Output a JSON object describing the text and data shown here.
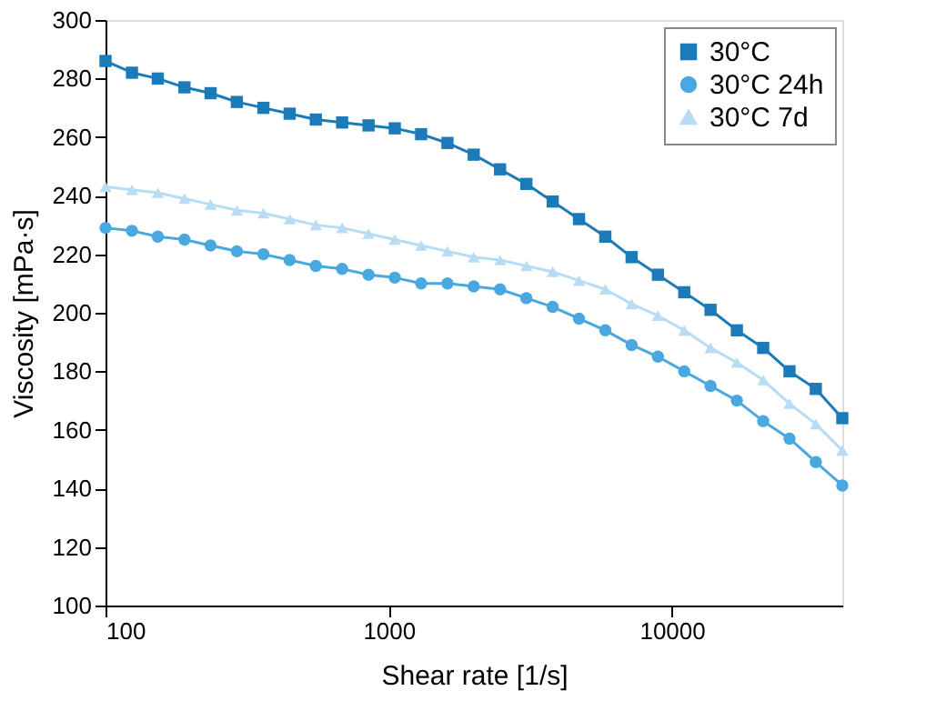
{
  "chart_data": {
    "type": "line",
    "xlabel": "Shear rate [1/s]",
    "ylabel": "Viscosity [mPa·s]",
    "x": [
      100,
      124,
      153,
      190,
      235,
      291,
      361,
      447,
      553,
      685,
      849,
      1051,
      1302,
      1613,
      1997,
      2474,
      3064,
      3795,
      4701,
      5822,
      7211,
      8932,
      11063,
      13703,
      16972,
      21022,
      26038,
      32251,
      40000
    ],
    "series": [
      {
        "name": "30°C",
        "color": "#1b7ab8",
        "marker": "square",
        "values": [
          286,
          282,
          280,
          277,
          275,
          272,
          270,
          268,
          266,
          265,
          264,
          263,
          261,
          258,
          254,
          249,
          244,
          238,
          232,
          226,
          219,
          213,
          207,
          201,
          194,
          188,
          180,
          174,
          164
        ]
      },
      {
        "name": "30°C 24h",
        "color": "#4aa8e0",
        "marker": "circle",
        "values": [
          229,
          228,
          226,
          225,
          223,
          221,
          220,
          218,
          216,
          215,
          213,
          212,
          210,
          210,
          209,
          208,
          205,
          202,
          198,
          194,
          189,
          185,
          180,
          175,
          170,
          163,
          157,
          149,
          141
        ]
      },
      {
        "name": "30°C 7d",
        "color": "#b9dcf5",
        "marker": "triangle",
        "values": [
          243,
          242,
          241,
          239,
          237,
          235,
          234,
          232,
          230,
          229,
          227,
          225,
          223,
          221,
          219,
          218,
          216,
          214,
          211,
          208,
          203,
          199,
          194,
          188,
          183,
          177,
          169,
          162,
          153
        ]
      }
    ],
    "log": "x",
    "xlim": [
      100,
      40000
    ],
    "xticks": [
      100,
      1000,
      10000
    ],
    "ylim": [
      100,
      300
    ],
    "yticks": [
      100,
      120,
      140,
      160,
      180,
      200,
      220,
      240,
      260,
      280,
      300
    ],
    "grid": false,
    "legend": "top right"
  }
}
